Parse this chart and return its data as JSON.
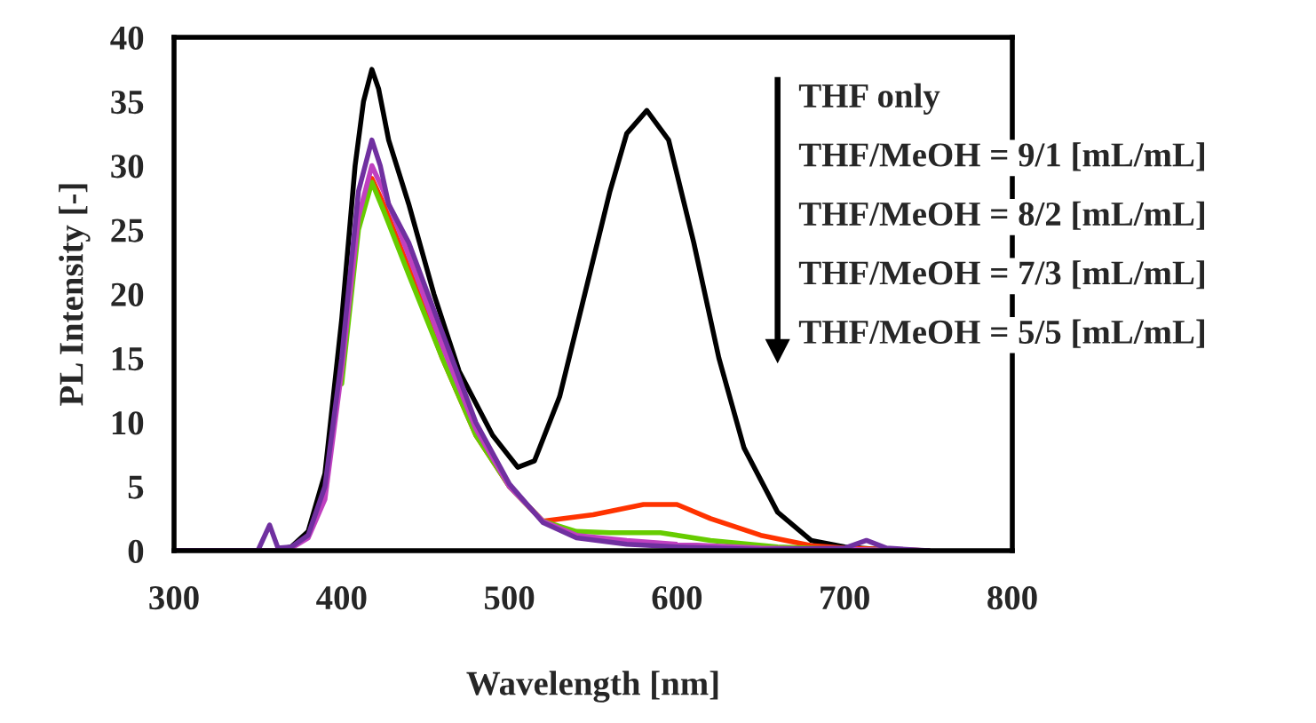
{
  "chart_data": {
    "type": "line",
    "xlabel": "Wavelength [nm]",
    "ylabel": "PL Intensity [-]",
    "xlim": [
      300,
      800
    ],
    "xticks": [
      300,
      400,
      500,
      600,
      700,
      800
    ],
    "ylim": [
      0,
      40
    ],
    "yticks": [
      0,
      5,
      10,
      15,
      20,
      25,
      30,
      35,
      40
    ],
    "grid": false,
    "legend": false,
    "marker": "none",
    "line_style": "solid",
    "annotations": [
      "THF only",
      "THF/MeOH = 9/1 [mL/mL]",
      "THF/MeOH = 8/2 [mL/mL]",
      "THF/MeOH = 7/3 [mL/mL]",
      "THF/MeOH = 5/5 [mL/mL]"
    ],
    "series": [
      {
        "color": "#000000",
        "x": [
          300,
          340,
          360,
          370,
          380,
          390,
          400,
          408,
          413,
          418,
          422,
          428,
          440,
          455,
          470,
          490,
          505,
          515,
          530,
          545,
          560,
          570,
          582,
          595,
          610,
          625,
          640,
          660,
          680,
          700,
          720,
          750
        ],
        "values": [
          0,
          0,
          0,
          0.3,
          1.5,
          6,
          18,
          30,
          35,
          37.5,
          36,
          32,
          27,
          20,
          14,
          9,
          6.5,
          7,
          12,
          20,
          28,
          32.5,
          34.3,
          32,
          24,
          15,
          8,
          3,
          0.8,
          0.3,
          0.1,
          0
        ]
      },
      {
        "color": "#ff3300",
        "x": [
          400,
          410,
          418,
          425,
          440,
          460,
          480,
          500,
          520,
          550,
          580,
          600,
          620,
          650,
          680,
          700,
          750
        ],
        "values": [
          13.5,
          25.5,
          29,
          27,
          22,
          15,
          9,
          5,
          2.3,
          2.8,
          3.6,
          3.6,
          2.5,
          1.2,
          0.4,
          0.2,
          0
        ]
      },
      {
        "color": "#66cc00",
        "x": [
          400,
          410,
          418,
          425,
          440,
          460,
          480,
          500,
          520,
          540,
          560,
          590,
          620,
          660,
          700,
          750
        ],
        "values": [
          13,
          25,
          28.7,
          26.5,
          21.5,
          15,
          9,
          5,
          2.3,
          1.5,
          1.4,
          1.4,
          0.8,
          0.3,
          0.1,
          0
        ]
      },
      {
        "color": "#c040c0",
        "x": [
          300,
          360,
          370,
          380,
          390,
          400,
          410,
          418,
          425,
          440,
          460,
          480,
          500,
          520,
          540,
          570,
          600,
          650,
          700,
          750
        ],
        "values": [
          0,
          0,
          0.2,
          1,
          4,
          14,
          26,
          30,
          28,
          23,
          16,
          9.5,
          5,
          2.3,
          1.2,
          0.8,
          0.5,
          0.2,
          0.1,
          0
        ]
      },
      {
        "color": "#7030a0",
        "x": [
          300,
          350,
          357,
          362,
          370,
          380,
          390,
          400,
          410,
          418,
          423,
          428,
          440,
          460,
          480,
          500,
          520,
          540,
          570,
          600,
          650,
          700,
          713,
          725,
          750
        ],
        "values": [
          0,
          0,
          2,
          0.2,
          0.3,
          1.2,
          5,
          15,
          28,
          32,
          30,
          27,
          24,
          17,
          10,
          5.2,
          2.2,
          1,
          0.5,
          0.3,
          0.1,
          0.2,
          0.8,
          0.2,
          0
        ]
      }
    ]
  }
}
